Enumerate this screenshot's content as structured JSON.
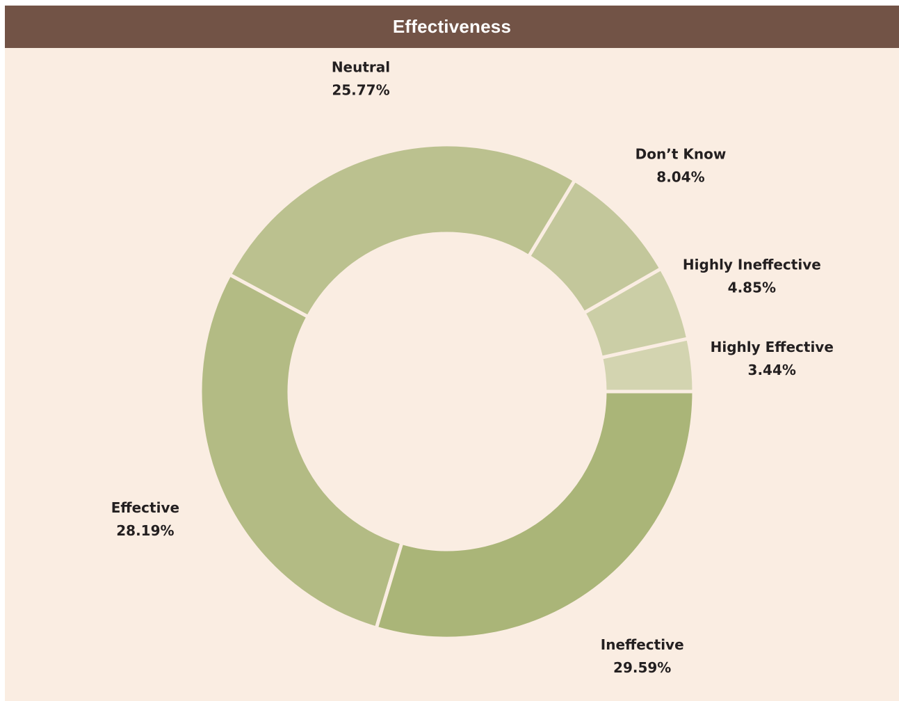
{
  "header": {
    "title": "Effectiveness"
  },
  "colors": {
    "background": "#faede2",
    "title_bar": "#725346",
    "separator": "#faede2"
  },
  "chart_data": {
    "type": "pie",
    "title": "Effectiveness",
    "donut": true,
    "slices": [
      {
        "label": "Highly Effective",
        "value": 3.44,
        "value_label": "3.44%",
        "color": "#d3d4b0"
      },
      {
        "label": "Highly Ineffective",
        "value": 4.85,
        "value_label": "4.85%",
        "color": "#cbcea6"
      },
      {
        "label": "Don’t Know",
        "value": 8.04,
        "value_label": "8.04%",
        "color": "#c3c79b"
      },
      {
        "label": "Neutral",
        "value": 25.77,
        "value_label": "25.77%",
        "color": "#bbc18f"
      },
      {
        "label": "Effective",
        "value": 28.19,
        "value_label": "28.19%",
        "color": "#b3bb84"
      },
      {
        "label": "Ineffective",
        "value": 29.59,
        "value_label": "29.59%",
        "color": "#aab578"
      }
    ]
  }
}
